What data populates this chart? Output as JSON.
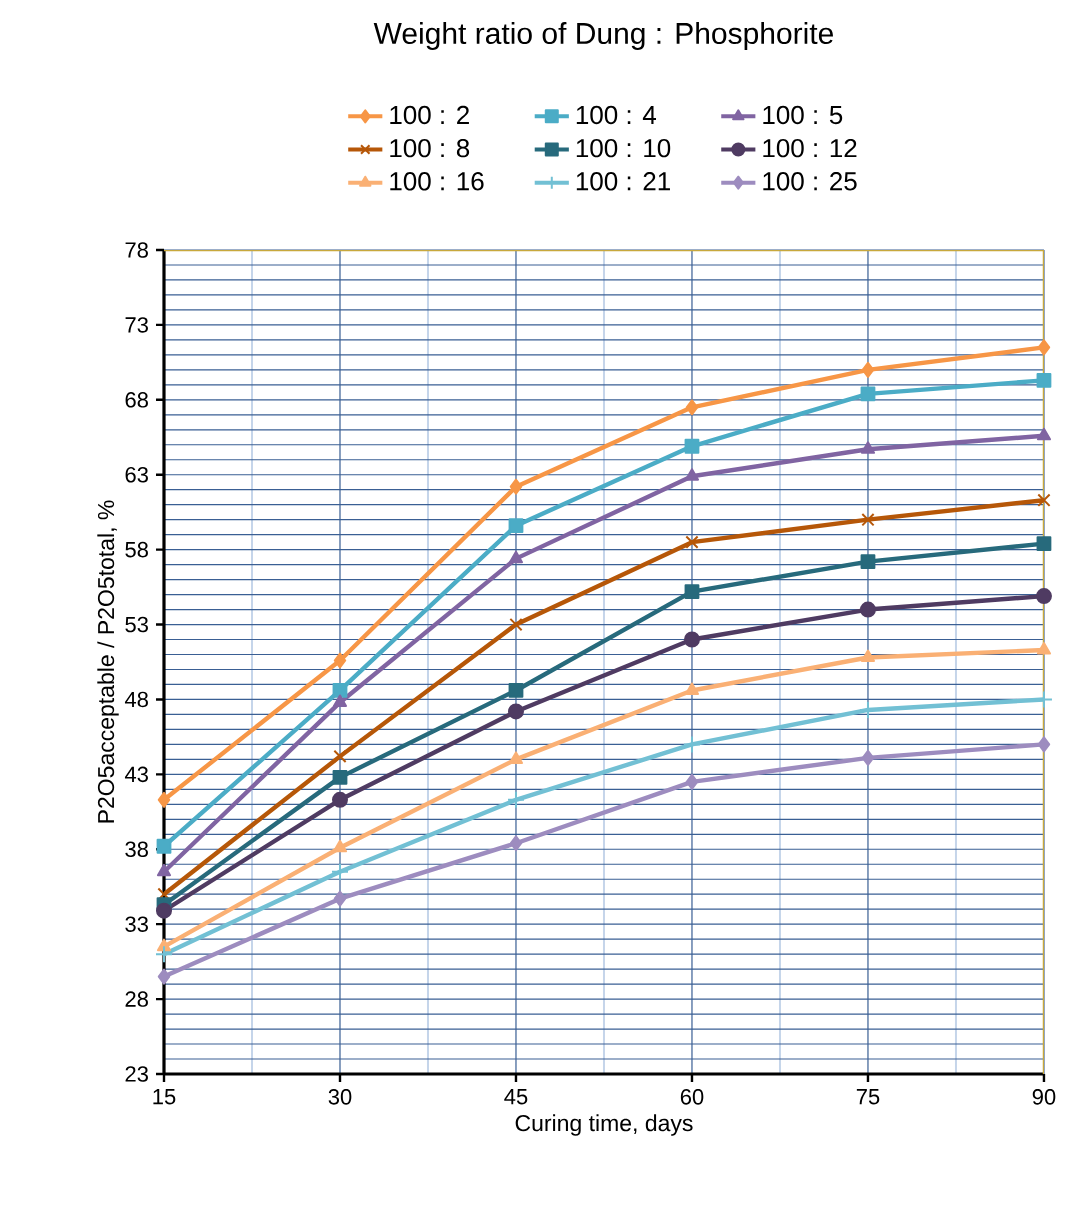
{
  "chart_data": {
    "type": "line",
    "legend_title": "Weight ratio of Dung : Phosphorite",
    "xlabel": "Curing time, days",
    "ylabel": "P2O5acceptable / P2O5total, %",
    "x": [
      15,
      30,
      45,
      60,
      75,
      90
    ],
    "xlim": [
      15,
      90
    ],
    "xticks": [
      15,
      30,
      45,
      60,
      75,
      90
    ],
    "ylim": [
      23,
      78
    ],
    "yticks": [
      23,
      28,
      33,
      38,
      43,
      48,
      53,
      58,
      63,
      68,
      73,
      78
    ],
    "grid": true,
    "legend": "top",
    "series": [
      {
        "name": "100 : 2",
        "color": "#f79646",
        "marker": "diamond",
        "values": [
          41.3,
          50.6,
          62.2,
          67.5,
          70.0,
          71.5
        ]
      },
      {
        "name": "100 : 4",
        "color": "#4bacc6",
        "marker": "square",
        "values": [
          38.2,
          48.6,
          59.6,
          64.9,
          68.4,
          69.3
        ]
      },
      {
        "name": "100 : 5",
        "color": "#8064a2",
        "marker": "triangle",
        "values": [
          36.5,
          47.8,
          57.4,
          62.9,
          64.7,
          65.6
        ]
      },
      {
        "name": "100 : 8",
        "color": "#b65708",
        "marker": "cross",
        "values": [
          35.0,
          44.2,
          53.0,
          58.5,
          60.0,
          61.3
        ]
      },
      {
        "name": "100 : 10",
        "color": "#276a7c",
        "marker": "square",
        "values": [
          34.3,
          42.8,
          48.6,
          55.2,
          57.2,
          58.4
        ]
      },
      {
        "name": "100 : 12",
        "color": "#4f3b62",
        "marker": "circle",
        "values": [
          33.9,
          41.3,
          47.2,
          52.0,
          54.0,
          54.9
        ]
      },
      {
        "name": "100 : 16",
        "color": "#fab074",
        "marker": "triangle",
        "values": [
          31.5,
          38.1,
          44.0,
          48.6,
          50.8,
          51.3
        ]
      },
      {
        "name": "100 : 21",
        "color": "#72c0d4",
        "marker": "plus",
        "values": [
          31.0,
          36.5,
          41.3,
          45.0,
          47.3,
          48.0
        ]
      },
      {
        "name": "100 : 25",
        "color": "#9d8cbf",
        "marker": "diamond",
        "values": [
          29.5,
          34.7,
          38.4,
          42.5,
          44.1,
          45.0
        ]
      }
    ]
  }
}
